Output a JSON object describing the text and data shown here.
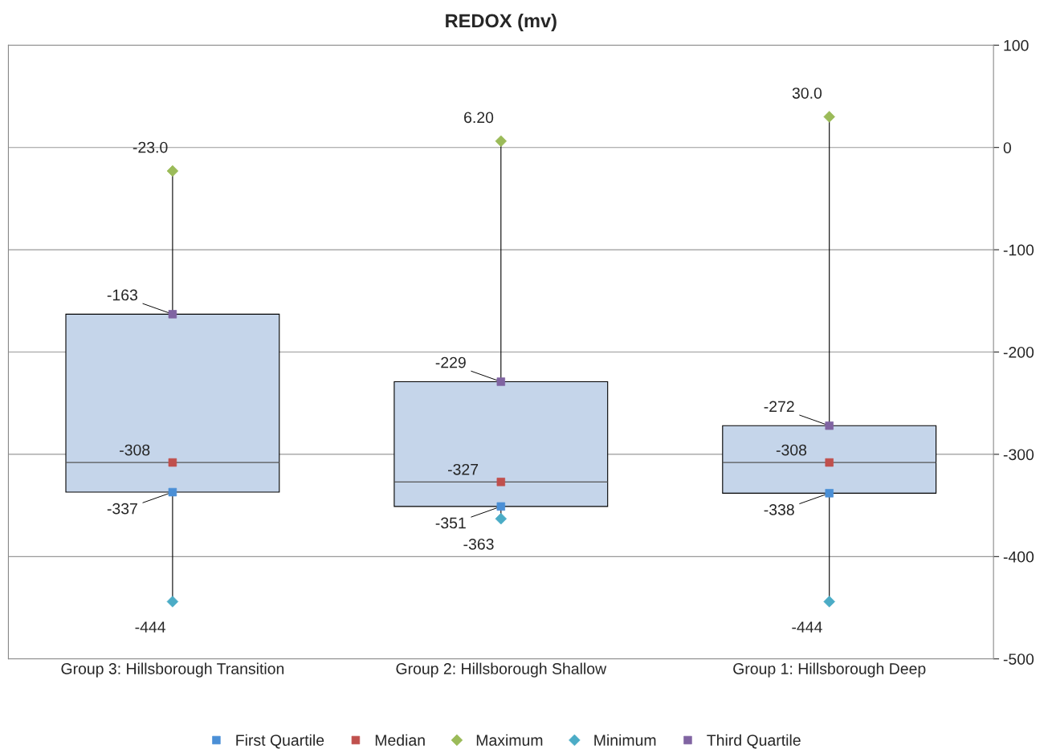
{
  "chart_data": {
    "type": "box",
    "title": "REDOX (mv)",
    "categories": [
      "Group 3: Hillsborough Transition",
      "Group 2: Hillsborough Shallow",
      "Group 1: Hillsborough Deep"
    ],
    "boxes": [
      {
        "low": -444,
        "q1": -337,
        "median": -308,
        "q3": -163,
        "high": -23.0
      },
      {
        "low": -363,
        "q1": -351,
        "median": -327,
        "q3": -229,
        "high": 6.2
      },
      {
        "low": -444,
        "q1": -338,
        "median": -308,
        "q3": -272,
        "high": 30.0
      }
    ],
    "series": [
      {
        "name": "First Quartile",
        "type": "scatter",
        "color": "#4a8fd6",
        "marker": "square",
        "x": [
          "Group 3: Hillsborough Transition",
          "Group 2: Hillsborough Shallow",
          "Group 1: Hillsborough Deep"
        ],
        "values": [
          -337,
          -351,
          -338
        ],
        "value_labels": [
          "-337",
          "-351",
          "-338"
        ]
      },
      {
        "name": "Median",
        "type": "scatter",
        "color": "#c0504d",
        "marker": "square",
        "x": [
          "Group 3: Hillsborough Transition",
          "Group 2: Hillsborough Shallow",
          "Group 1: Hillsborough Deep"
        ],
        "values": [
          -308,
          -327,
          -308
        ],
        "value_labels": [
          "-308",
          "-327",
          "-308"
        ]
      },
      {
        "name": "Maximum",
        "type": "scatter",
        "color": "#9bbb59",
        "marker": "diamond",
        "x": [
          "Group 3: Hillsborough Transition",
          "Group 2: Hillsborough Shallow",
          "Group 1: Hillsborough Deep"
        ],
        "values": [
          -23.0,
          6.2,
          30.0
        ],
        "value_labels": [
          "-23.0",
          "6.20",
          "30.0"
        ]
      },
      {
        "name": "Minimum",
        "type": "scatter",
        "color": "#4bacc6",
        "marker": "diamond",
        "x": [
          "Group 3: Hillsborough Transition",
          "Group 2: Hillsborough Shallow",
          "Group 1: Hillsborough Deep"
        ],
        "values": [
          -444,
          -363,
          -444
        ],
        "value_labels": [
          "-444",
          "-363",
          "-444"
        ]
      },
      {
        "name": "Third Quartile",
        "type": "scatter",
        "color": "#8064a2",
        "marker": "square",
        "x": [
          "Group 3: Hillsborough Transition",
          "Group 2: Hillsborough Shallow",
          "Group 1: Hillsborough Deep"
        ],
        "values": [
          -163,
          -229,
          -272
        ],
        "value_labels": [
          "-163",
          "-229",
          "-272"
        ]
      }
    ],
    "ylim": [
      -500,
      100
    ],
    "yticks": [
      -500,
      -400,
      -300,
      -200,
      -100,
      0,
      100
    ],
    "grid": "y",
    "legend": "bottom"
  }
}
